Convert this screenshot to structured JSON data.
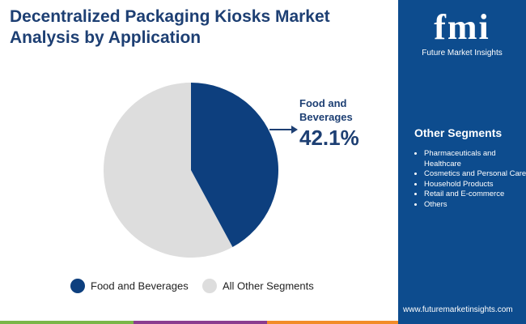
{
  "chart_data": {
    "type": "pie",
    "title": "Decentralized Packaging Kiosks Market Analysis by Application",
    "categories": [
      "Food and Beverages",
      "All Other Segments"
    ],
    "values": [
      42.1,
      57.9
    ],
    "value_labels": [
      "42.1%",
      null
    ],
    "colors": [
      "#0d3f7e",
      "#dddddd"
    ]
  },
  "sidebar": {
    "logo": "fmi",
    "brand": "Future Market Insights",
    "heading": "Other Segments",
    "items": [
      "Pharmaceuticals and Healthcare",
      "Cosmetics and Personal Care",
      "Household Products",
      "Retail and E-commerce",
      "Others"
    ],
    "website": "www.futuremarketinsights.com"
  }
}
